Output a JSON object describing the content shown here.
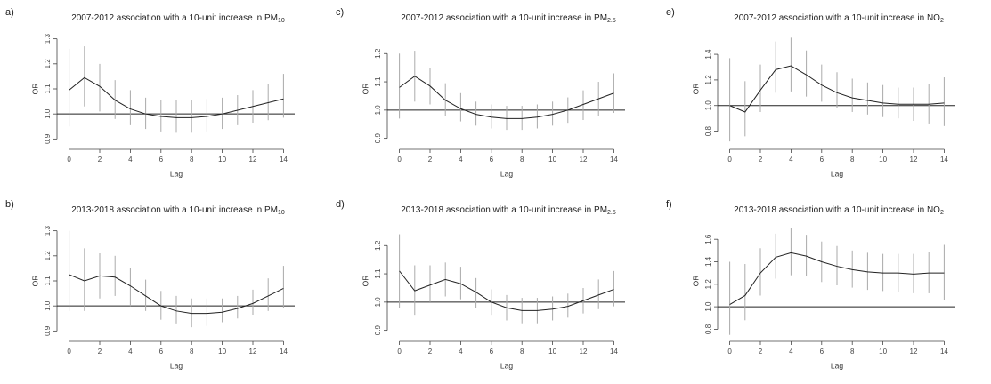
{
  "chart_data": [
    {
      "type": "line",
      "panel": "a)",
      "title": "2007-2012 association with a 10-unit increase in PM",
      "title_sub": "10",
      "xlabel": "Lag",
      "ylabel": "OR",
      "x": [
        0,
        1,
        2,
        3,
        4,
        5,
        6,
        7,
        8,
        9,
        10,
        11,
        12,
        13,
        14
      ],
      "values": [
        1.095,
        1.145,
        1.11,
        1.055,
        1.02,
        1.0,
        0.99,
        0.985,
        0.985,
        0.99,
        1.0,
        1.015,
        1.03,
        1.045,
        1.06
      ],
      "ci_lower": [
        0.95,
        1.03,
        1.01,
        0.98,
        0.955,
        0.94,
        0.93,
        0.925,
        0.925,
        0.93,
        0.94,
        0.955,
        0.965,
        0.975,
        0.985
      ],
      "ci_upper": [
        1.26,
        1.27,
        1.2,
        1.135,
        1.095,
        1.065,
        1.055,
        1.055,
        1.055,
        1.06,
        1.065,
        1.075,
        1.095,
        1.12,
        1.16
      ],
      "color": "#222222",
      "ci_color": "#aaaaaa",
      "hline": 1,
      "xlim": [
        -0.5,
        14.5
      ],
      "ylim": [
        0.88,
        1.32
      ],
      "xticks": [
        0,
        2,
        4,
        6,
        8,
        10,
        12,
        14
      ],
      "yticks": [
        0.9,
        {
          "value": 1,
          "label": "1.0"
        },
        1.1,
        1.2,
        1.3
      ]
    },
    {
      "type": "line",
      "panel": "b)",
      "title": "2013-2018 association with a 10-unit increase in PM",
      "title_sub": "10",
      "xlabel": "Lag",
      "ylabel": "OR",
      "x": [
        0,
        1,
        2,
        3,
        4,
        5,
        6,
        7,
        8,
        9,
        10,
        11,
        12,
        13,
        14
      ],
      "values": [
        1.125,
        1.1,
        1.12,
        1.115,
        1.08,
        1.04,
        1.0,
        0.98,
        0.97,
        0.97,
        0.975,
        0.99,
        1.01,
        1.04,
        1.07
      ],
      "ci_lower": [
        0.98,
        0.98,
        1.03,
        1.04,
        1.0,
        0.98,
        0.945,
        0.93,
        0.915,
        0.92,
        0.935,
        0.95,
        0.965,
        0.98,
        0.99
      ],
      "ci_upper": [
        1.3,
        1.23,
        1.21,
        1.2,
        1.15,
        1.105,
        1.06,
        1.04,
        1.03,
        1.03,
        1.03,
        1.04,
        1.065,
        1.11,
        1.16
      ],
      "color": "#222222",
      "ci_color": "#aaaaaa",
      "hline": 1,
      "xlim": [
        -0.5,
        14.5
      ],
      "ylim": [
        0.88,
        1.32
      ],
      "xticks": [
        0,
        2,
        4,
        6,
        8,
        10,
        12,
        14
      ],
      "yticks": [
        0.9,
        {
          "value": 1,
          "label": "1.0"
        },
        1.1,
        1.2,
        1.3
      ]
    },
    {
      "type": "line",
      "panel": "c)",
      "title": "2007-2012 association with a 10-unit increase in PM",
      "title_sub": "2.5",
      "xlabel": "Lag",
      "ylabel": "OR",
      "x": [
        0,
        1,
        2,
        3,
        4,
        5,
        6,
        7,
        8,
        9,
        10,
        11,
        12,
        13,
        14
      ],
      "values": [
        1.08,
        1.12,
        1.085,
        1.035,
        1.005,
        0.985,
        0.975,
        0.97,
        0.97,
        0.975,
        0.985,
        1.0,
        1.02,
        1.04,
        1.06
      ],
      "ci_lower": [
        0.97,
        1.03,
        1.02,
        0.98,
        0.96,
        0.945,
        0.935,
        0.93,
        0.93,
        0.935,
        0.945,
        0.955,
        0.965,
        0.98,
        0.99
      ],
      "ci_upper": [
        1.2,
        1.21,
        1.15,
        1.095,
        1.06,
        1.03,
        1.02,
        1.015,
        1.015,
        1.02,
        1.03,
        1.045,
        1.07,
        1.1,
        1.13
      ],
      "color": "#222222",
      "ci_color": "#aaaaaa",
      "hline": 1,
      "xlim": [
        -0.5,
        14.5
      ],
      "ylim": [
        0.88,
        1.27
      ],
      "xticks": [
        0,
        2,
        4,
        6,
        8,
        10,
        12,
        14
      ],
      "yticks": [
        0.9,
        {
          "value": 1,
          "label": "1.0"
        },
        1.1,
        1.2
      ]
    },
    {
      "type": "line",
      "panel": "d)",
      "title": "2013-2018 association with a 10-unit increase in PM",
      "title_sub": "2.5",
      "xlabel": "Lag",
      "ylabel": "OR",
      "x": [
        0,
        1,
        2,
        3,
        4,
        5,
        6,
        7,
        8,
        9,
        10,
        11,
        12,
        13,
        14
      ],
      "values": [
        1.11,
        1.04,
        1.06,
        1.08,
        1.065,
        1.035,
        1.0,
        0.98,
        0.97,
        0.97,
        0.975,
        0.985,
        1.005,
        1.025,
        1.045
      ],
      "ci_lower": [
        0.98,
        0.955,
        1.0,
        1.02,
        1.01,
        0.98,
        0.955,
        0.935,
        0.925,
        0.925,
        0.935,
        0.945,
        0.96,
        0.975,
        0.985
      ],
      "ci_upper": [
        1.24,
        1.13,
        1.13,
        1.14,
        1.125,
        1.085,
        1.045,
        1.025,
        1.015,
        1.015,
        1.02,
        1.03,
        1.05,
        1.08,
        1.11
      ],
      "color": "#222222",
      "ci_color": "#aaaaaa",
      "hline": 1,
      "xlim": [
        -0.5,
        14.5
      ],
      "ylim": [
        0.88,
        1.27
      ],
      "xticks": [
        0,
        2,
        4,
        6,
        8,
        10,
        12,
        14
      ],
      "yticks": [
        0.9,
        {
          "value": 1,
          "label": "1.0"
        },
        1.1,
        1.2
      ]
    },
    {
      "type": "line",
      "panel": "e)",
      "title": "2007-2012 association with a 10-unit increase in NO",
      "title_sub": "2",
      "xlabel": "Lag",
      "ylabel": "OR",
      "x": [
        0,
        1,
        2,
        3,
        4,
        5,
        6,
        7,
        8,
        9,
        10,
        11,
        12,
        13,
        14
      ],
      "values": [
        1.0,
        0.95,
        1.12,
        1.28,
        1.31,
        1.24,
        1.16,
        1.1,
        1.06,
        1.04,
        1.02,
        1.01,
        1.01,
        1.01,
        1.02
      ],
      "ci_lower": [
        0.72,
        0.76,
        0.95,
        1.1,
        1.11,
        1.07,
        1.03,
        0.98,
        0.95,
        0.93,
        0.91,
        0.9,
        0.88,
        0.86,
        0.84
      ],
      "ci_upper": [
        1.37,
        1.19,
        1.32,
        1.5,
        1.53,
        1.43,
        1.32,
        1.26,
        1.21,
        1.18,
        1.16,
        1.14,
        1.14,
        1.17,
        1.22
      ],
      "color": "#222222",
      "ci_color": "#aaaaaa",
      "hline": 1,
      "xlim": [
        -0.5,
        14.5
      ],
      "ylim": [
        0.7,
        1.56
      ],
      "xticks": [
        0,
        2,
        4,
        6,
        8,
        10,
        12,
        14
      ],
      "yticks": [
        0.8,
        {
          "value": 1,
          "label": "1.0"
        },
        1.2,
        1.4
      ]
    },
    {
      "type": "line",
      "panel": "f)",
      "title": "2013-2018 association with a 10-unit increase in NO",
      "title_sub": "2",
      "xlabel": "Lag",
      "ylabel": "OR",
      "x": [
        0,
        1,
        2,
        3,
        4,
        5,
        6,
        7,
        8,
        9,
        10,
        11,
        12,
        13,
        14
      ],
      "values": [
        1.02,
        1.1,
        1.3,
        1.44,
        1.48,
        1.45,
        1.4,
        1.36,
        1.33,
        1.31,
        1.3,
        1.3,
        1.29,
        1.3,
        1.3
      ],
      "ci_lower": [
        0.75,
        0.88,
        1.1,
        1.25,
        1.28,
        1.27,
        1.22,
        1.19,
        1.17,
        1.15,
        1.14,
        1.13,
        1.12,
        1.12,
        1.06
      ],
      "ci_upper": [
        1.4,
        1.38,
        1.52,
        1.65,
        1.7,
        1.64,
        1.58,
        1.54,
        1.5,
        1.48,
        1.47,
        1.47,
        1.47,
        1.49,
        1.55
      ],
      "color": "#222222",
      "ci_color": "#aaaaaa",
      "hline": 1,
      "xlim": [
        -0.5,
        14.5
      ],
      "ylim": [
        0.74,
        1.72
      ],
      "xticks": [
        0,
        2,
        4,
        6,
        8,
        10,
        12,
        14
      ],
      "yticks": [
        0.8,
        {
          "value": 1,
          "label": "1.0"
        },
        1.2,
        1.4,
        1.6
      ]
    }
  ]
}
